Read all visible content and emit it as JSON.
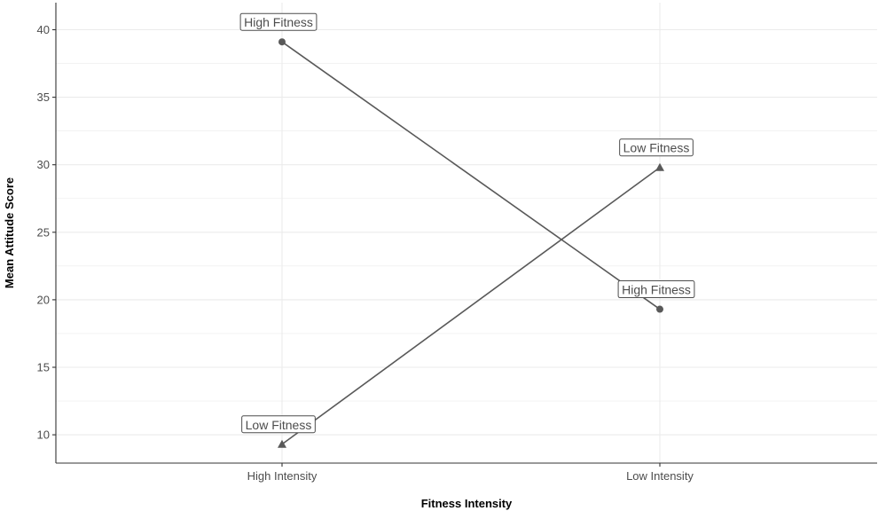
{
  "chart_data": {
    "type": "line",
    "categories": [
      "High Intensity",
      "Low Intensity"
    ],
    "series": [
      {
        "name": "High Fitness",
        "values": [
          39.1,
          19.3
        ],
        "marker": "circle"
      },
      {
        "name": "Low Fitness",
        "values": [
          9.3,
          29.8
        ],
        "marker": "triangle"
      }
    ],
    "xlabel": "Fitness Intensity",
    "ylabel": "Mean Attitude Score",
    "ylim": [
      8.2,
      42
    ],
    "yticks": [
      10,
      15,
      20,
      25,
      30,
      35,
      40
    ],
    "grid": true,
    "legend": "none",
    "colors": {
      "line": "#595959",
      "grid": "#ebebeb",
      "axis": "#333333",
      "text": "#4d4d4d"
    }
  }
}
